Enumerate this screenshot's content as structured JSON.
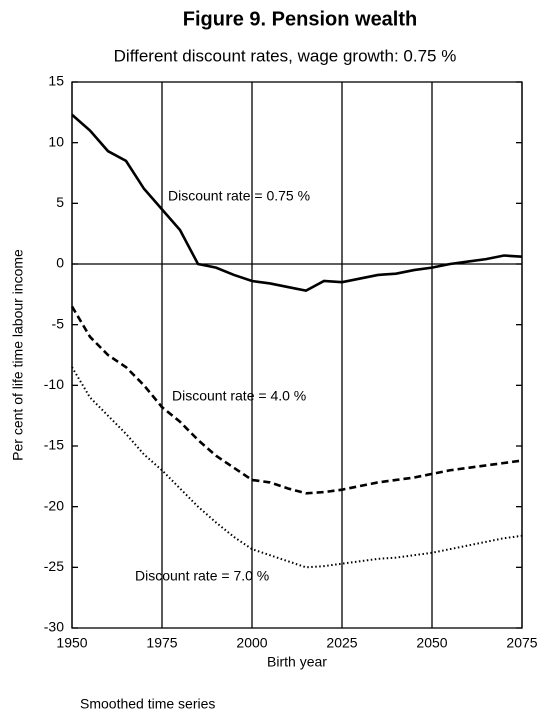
{
  "chart_data": {
    "type": "line",
    "title": "Figure 9. Pension wealth",
    "subtitle": "Different discount rates, wage growth: 0.75 %",
    "x_label": "Birth year",
    "y_label": "Per cent of life time labour income",
    "footnote": "Smoothed time series",
    "x": [
      1950,
      1955,
      1960,
      1965,
      1970,
      1975,
      1980,
      1985,
      1990,
      1995,
      2000,
      2005,
      2010,
      2015,
      2020,
      2025,
      2030,
      2035,
      2040,
      2045,
      2050,
      2055,
      2060,
      2065,
      2070,
      2075
    ],
    "series": [
      {
        "name": "Discount rate = 0.75 %",
        "color": "#000000",
        "dash": "solid",
        "values": [
          12.3,
          11.0,
          9.3,
          8.5,
          6.2,
          4.5,
          2.8,
          0.0,
          -0.3,
          -0.9,
          -1.4,
          -1.6,
          -1.9,
          -2.2,
          -1.4,
          -1.5,
          -1.2,
          -0.9,
          -0.8,
          -0.5,
          -0.3,
          0.0,
          0.2,
          0.4,
          0.7,
          0.6
        ]
      },
      {
        "name": "Discount rate = 4.0 %",
        "color": "#000000",
        "dash": "dashed",
        "values": [
          -3.5,
          -6.0,
          -7.5,
          -8.5,
          -10.0,
          -11.8,
          -13.0,
          -14.5,
          -15.8,
          -16.8,
          -17.8,
          -18.0,
          -18.5,
          -18.9,
          -18.8,
          -18.6,
          -18.3,
          -18.0,
          -17.8,
          -17.6,
          -17.3,
          -17.0,
          -16.8,
          -16.6,
          -16.4,
          -16.2
        ]
      },
      {
        "name": "Discount rate = 7.0 %",
        "color": "#000000",
        "dash": "dotted",
        "values": [
          -8.5,
          -11.0,
          -12.5,
          -14.0,
          -15.7,
          -17.0,
          -18.5,
          -20.0,
          -21.3,
          -22.5,
          -23.5,
          -24.0,
          -24.5,
          -25.0,
          -24.9,
          -24.7,
          -24.5,
          -24.3,
          -24.2,
          -24.0,
          -23.8,
          -23.5,
          -23.2,
          -22.9,
          -22.6,
          -22.4
        ]
      }
    ],
    "xlim": [
      1950,
      2075
    ],
    "xticks": [
      1950,
      1975,
      2000,
      2025,
      2050,
      2075
    ],
    "ylim": [
      -30,
      15
    ],
    "yticks": [
      15,
      10,
      5,
      0,
      -5,
      -10,
      -15,
      -20,
      -25,
      -30
    ],
    "grid": "x"
  }
}
